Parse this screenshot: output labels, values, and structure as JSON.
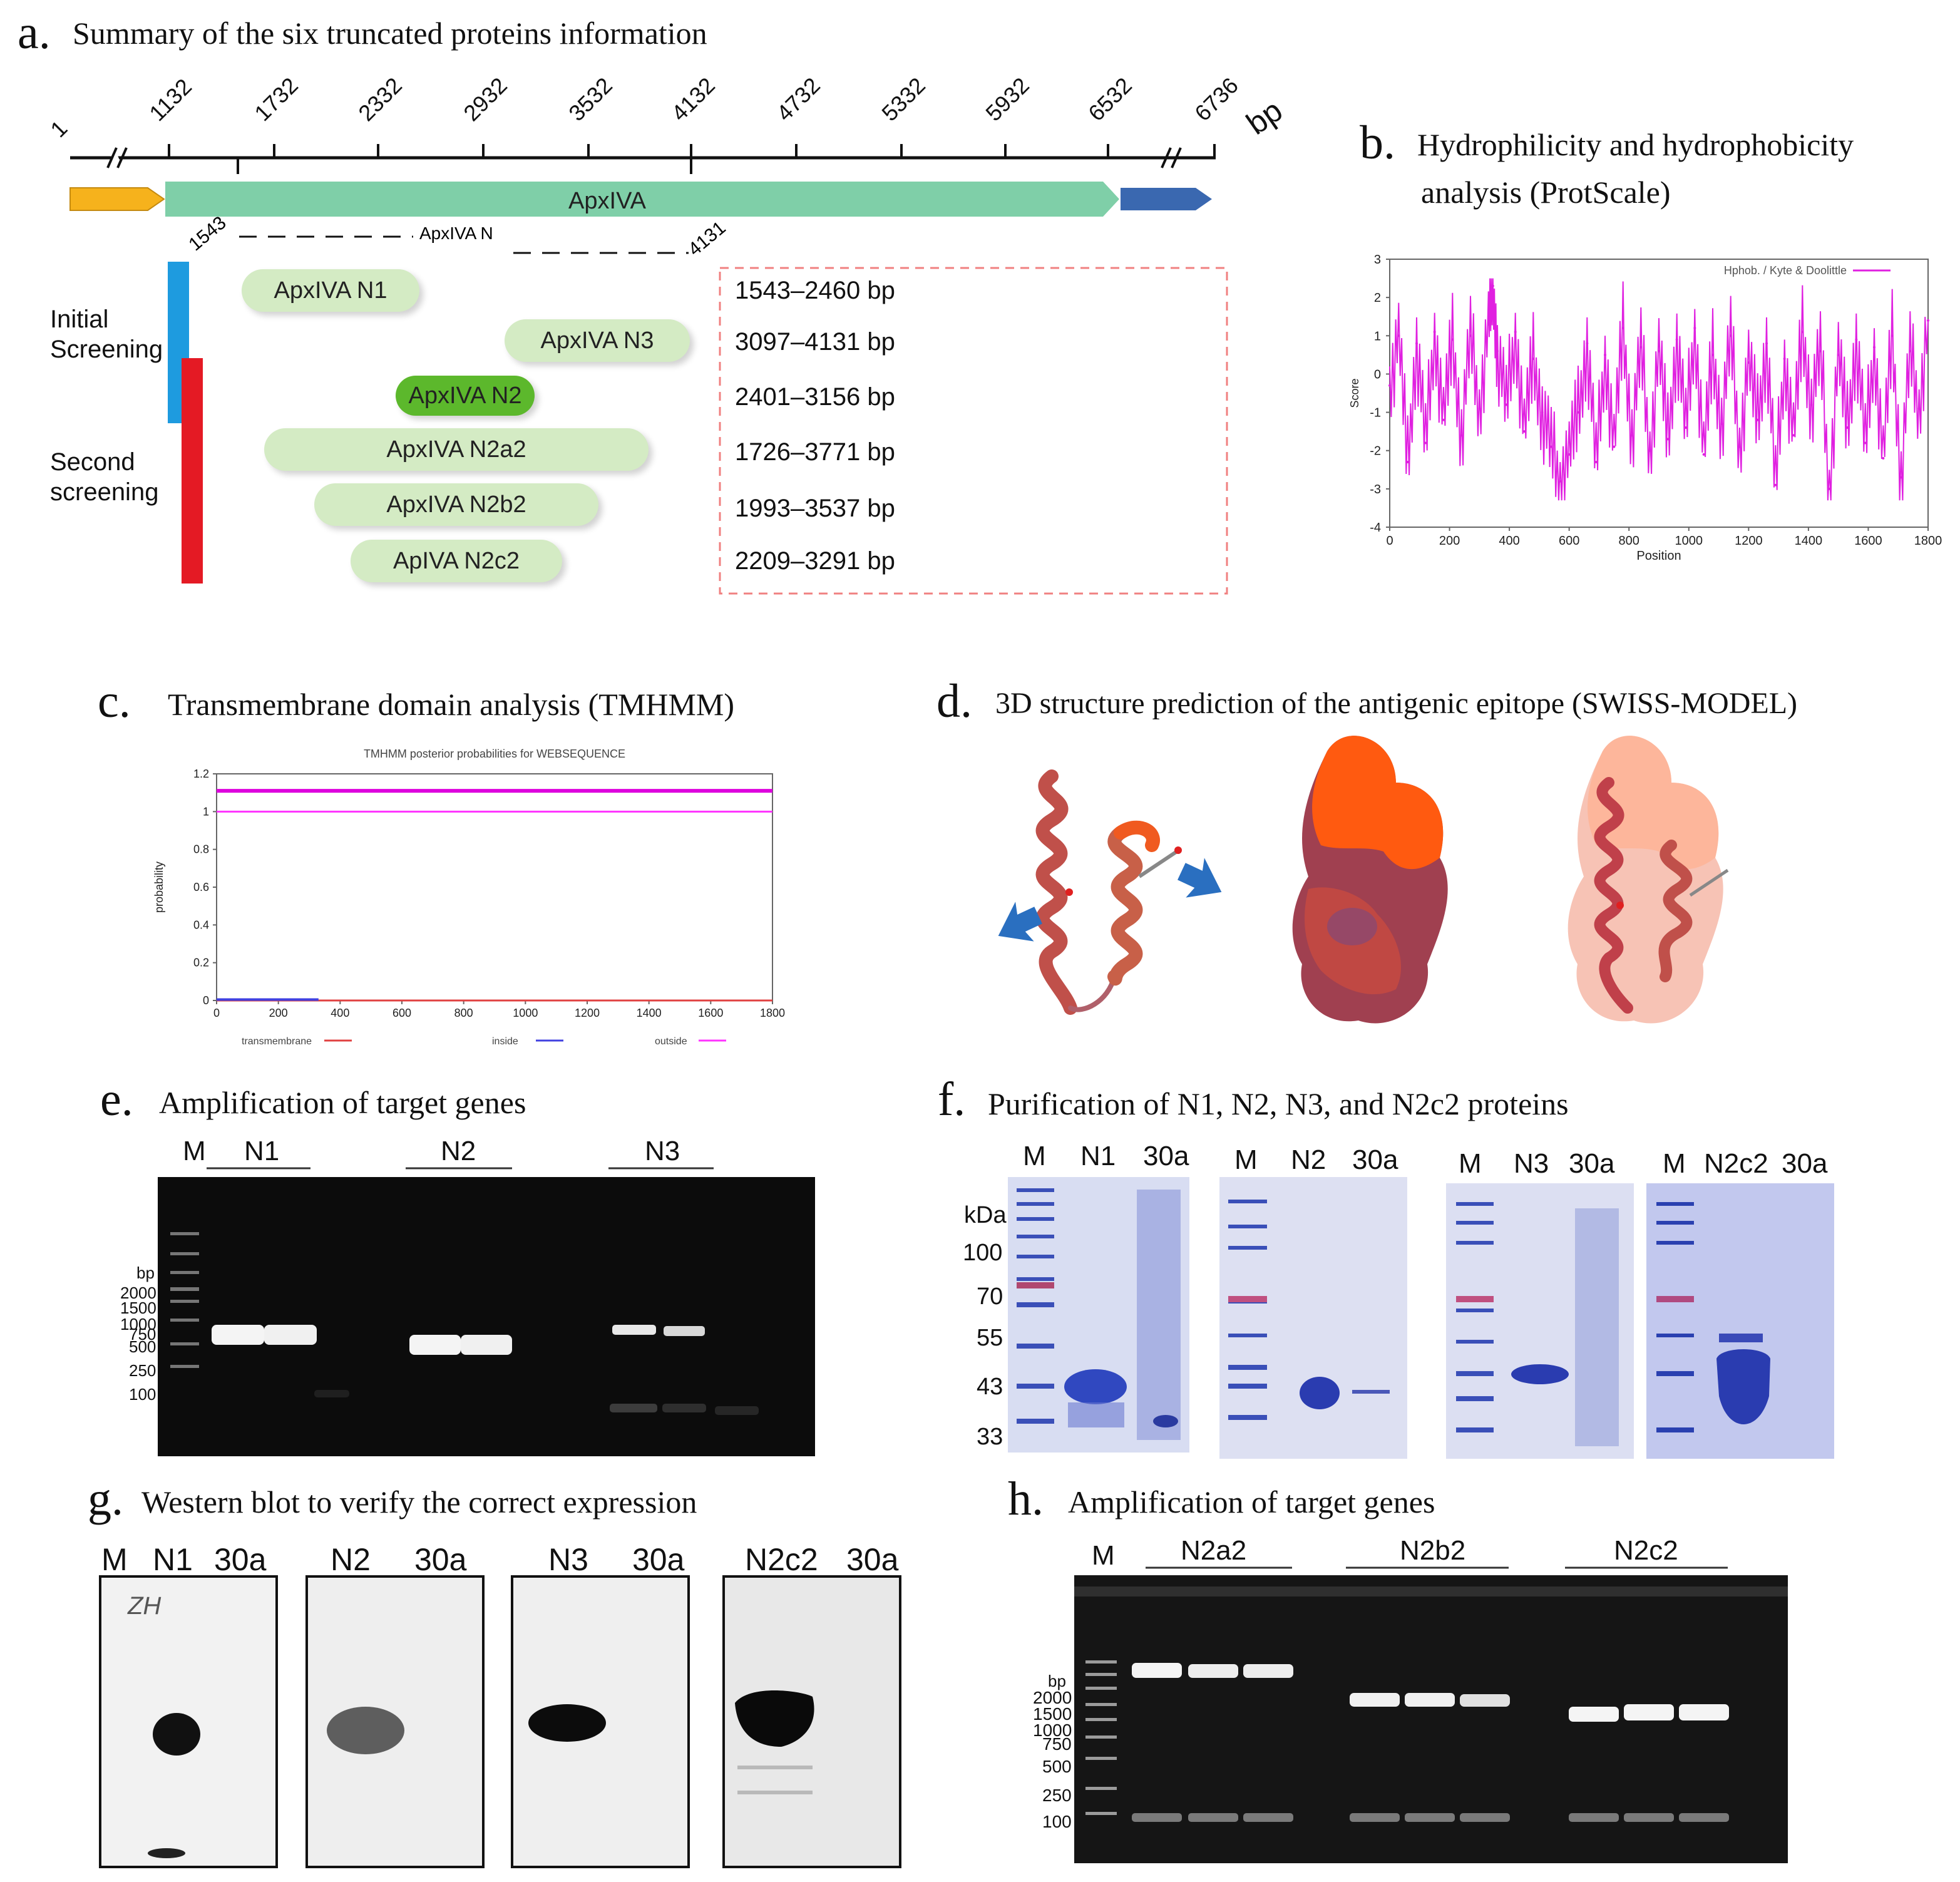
{
  "panel_a": {
    "label": "a.",
    "title": "Summary of the six truncated proteins information",
    "axis_ticks": [
      "1",
      "1132",
      "1732",
      "2332",
      "2932",
      "3532",
      "4132",
      "4732",
      "5332",
      "5932",
      "6532",
      "6736"
    ],
    "unit": "bp",
    "gene_label": "ApxIVA",
    "sub_start": "1543",
    "sub_label": "ApxIVA N",
    "sub_end": "4131",
    "group_initial": "Initial Screening",
    "group_second": "Second screening",
    "proteins": [
      {
        "name": "ApxIVA N1",
        "range": "1543–2460 bp"
      },
      {
        "name": "ApxIVA N3",
        "range": "3097–4131 bp"
      },
      {
        "name": "ApxIVA N2",
        "range": "2401–3156 bp"
      },
      {
        "name": "ApxIVA N2a2",
        "range": "1726–3771 bp"
      },
      {
        "name": "ApxIVA N2b2",
        "range": "1993–3537 bp"
      },
      {
        "name": "ApIVA N2c2",
        "range": "2209–3291 bp"
      }
    ]
  },
  "panel_b": {
    "label": "b.",
    "title_line1": "Hydrophilicity and hydrophobicity",
    "title_line2": "analysis (ProtScale)"
  },
  "panel_c": {
    "label": "c.",
    "title": "Transmembrane domain analysis (TMHMM)"
  },
  "panel_d": {
    "label": "d.",
    "title": "3D structure prediction of the antigenic epitope (SWISS-MODEL)"
  },
  "panel_e": {
    "label": "e.",
    "title": "Amplification of target genes",
    "marker": "M",
    "groups": [
      "N1",
      "N2",
      "N3"
    ],
    "bp_header": "bp",
    "ladder": [
      "2000",
      "1500",
      "1000",
      "750",
      "500",
      "250",
      "100"
    ]
  },
  "panel_f": {
    "label": "f.",
    "title": "Purification of N1, N2, N3, and N2c2 proteins",
    "kda_header": "kDa",
    "kda": [
      "100",
      "70",
      "55",
      "43",
      "33"
    ],
    "gels": [
      {
        "lanes": [
          "M",
          "N1",
          "30a"
        ]
      },
      {
        "lanes": [
          "M",
          "N2",
          "30a"
        ]
      },
      {
        "lanes": [
          "M",
          "N3",
          "30a"
        ]
      },
      {
        "lanes": [
          "M",
          "N2c2",
          "30a"
        ]
      }
    ]
  },
  "panel_g": {
    "label": "g.",
    "title": "Western blot to verify the correct expression",
    "marker": "M",
    "blots": [
      {
        "lanes": [
          "N1",
          "30a"
        ]
      },
      {
        "lanes": [
          "N2",
          "30a"
        ]
      },
      {
        "lanes": [
          "N3",
          "30a"
        ]
      },
      {
        "lanes": [
          "N2c2",
          "30a"
        ]
      }
    ],
    "handwriting": "ZH"
  },
  "panel_h": {
    "label": "h.",
    "title": "Amplification of target genes",
    "marker": "M",
    "groups": [
      "N2a2",
      "N2b2",
      "N2c2"
    ],
    "bp_header": "bp",
    "ladder": [
      "2000",
      "1500",
      "1000",
      "750",
      "500",
      "250",
      "100"
    ]
  },
  "chart_data": [
    {
      "type": "line",
      "title": "",
      "legend": [
        "Hphob. / Kyte & Doolittle"
      ],
      "xlabel": "Position",
      "ylabel": "Score",
      "xlim": [
        0,
        1800
      ],
      "ylim": [
        -4,
        3
      ],
      "xticks": [
        "0",
        "200",
        "400",
        "600",
        "800",
        "1000",
        "1200",
        "1400",
        "1600",
        "1800"
      ],
      "yticks": [
        "3",
        "2",
        "1",
        "0",
        "-1",
        "-2",
        "-3",
        "-4"
      ],
      "series": [
        {
          "name": "Hphob. / Kyte & Doolittle",
          "color": "#e020e0",
          "x": [
            0,
            30,
            60,
            90,
            120,
            150,
            180,
            210,
            240,
            270,
            300,
            330,
            345,
            360,
            390,
            420,
            450,
            480,
            510,
            540,
            570,
            600,
            630,
            660,
            690,
            720,
            750,
            780,
            810,
            840,
            870,
            900,
            930,
            960,
            990,
            1020,
            1050,
            1080,
            1110,
            1140,
            1170,
            1200,
            1230,
            1260,
            1290,
            1320,
            1350,
            1380,
            1410,
            1440,
            1470,
            1500,
            1530,
            1560,
            1590,
            1620,
            1650,
            1680,
            1710,
            1740,
            1770,
            1800
          ],
          "y": [
            -0.3,
            1.0,
            -2.3,
            0.8,
            -1.8,
            1.1,
            -1.2,
            0.9,
            -1.6,
            1.0,
            -0.9,
            1.3,
            2.3,
            0.6,
            -0.8,
            1.1,
            -1.5,
            0.4,
            -1.0,
            -1.9,
            -2.8,
            -2.1,
            -1.0,
            0.8,
            -2.3,
            0.5,
            -1.9,
            1.2,
            -1.6,
            0.7,
            -2.0,
            0.6,
            -1.7,
            0.9,
            -1.4,
            1.2,
            -2.1,
            0.5,
            -1.3,
            1.0,
            -1.9,
            0.3,
            -1.2,
            0.8,
            -2.9,
            0.4,
            -1.6,
            1.1,
            -0.8,
            0.6,
            -3.0,
            0.5,
            -1.4,
            0.9,
            -1.8,
            0.7,
            -2.2,
            1.0,
            -2.7,
            0.6,
            -0.9,
            1.4
          ]
        }
      ]
    },
    {
      "type": "line",
      "title": "TMHMM posterior probabilities for WEBSEQUENCE",
      "xlabel": "",
      "ylabel": "probability",
      "xlim": [
        0,
        1800
      ],
      "ylim": [
        0,
        1.2
      ],
      "xticks": [
        "0",
        "200",
        "400",
        "600",
        "800",
        "1000",
        "1200",
        "1400",
        "1600",
        "1800"
      ],
      "yticks": [
        "1.2",
        "1",
        "0.8",
        "0.6",
        "0.4",
        "0.2",
        "0"
      ],
      "legend": [
        "transmembrane",
        "inside",
        "outside"
      ],
      "series": [
        {
          "name": "transmembrane",
          "color": "#e04040",
          "x": [
            0,
            1800
          ],
          "y": [
            0,
            0
          ]
        },
        {
          "name": "inside",
          "color": "#4040e0",
          "x": [
            0,
            330
          ],
          "y": [
            0.005,
            0.005
          ]
        },
        {
          "name": "outside",
          "color": "#ff33ff",
          "x": [
            0,
            1800
          ],
          "y": [
            1,
            1
          ]
        },
        {
          "name": "outside-bar",
          "color": "#dd00dd",
          "x": [
            0,
            1800
          ],
          "y": [
            1.11,
            1.11
          ]
        }
      ]
    }
  ]
}
